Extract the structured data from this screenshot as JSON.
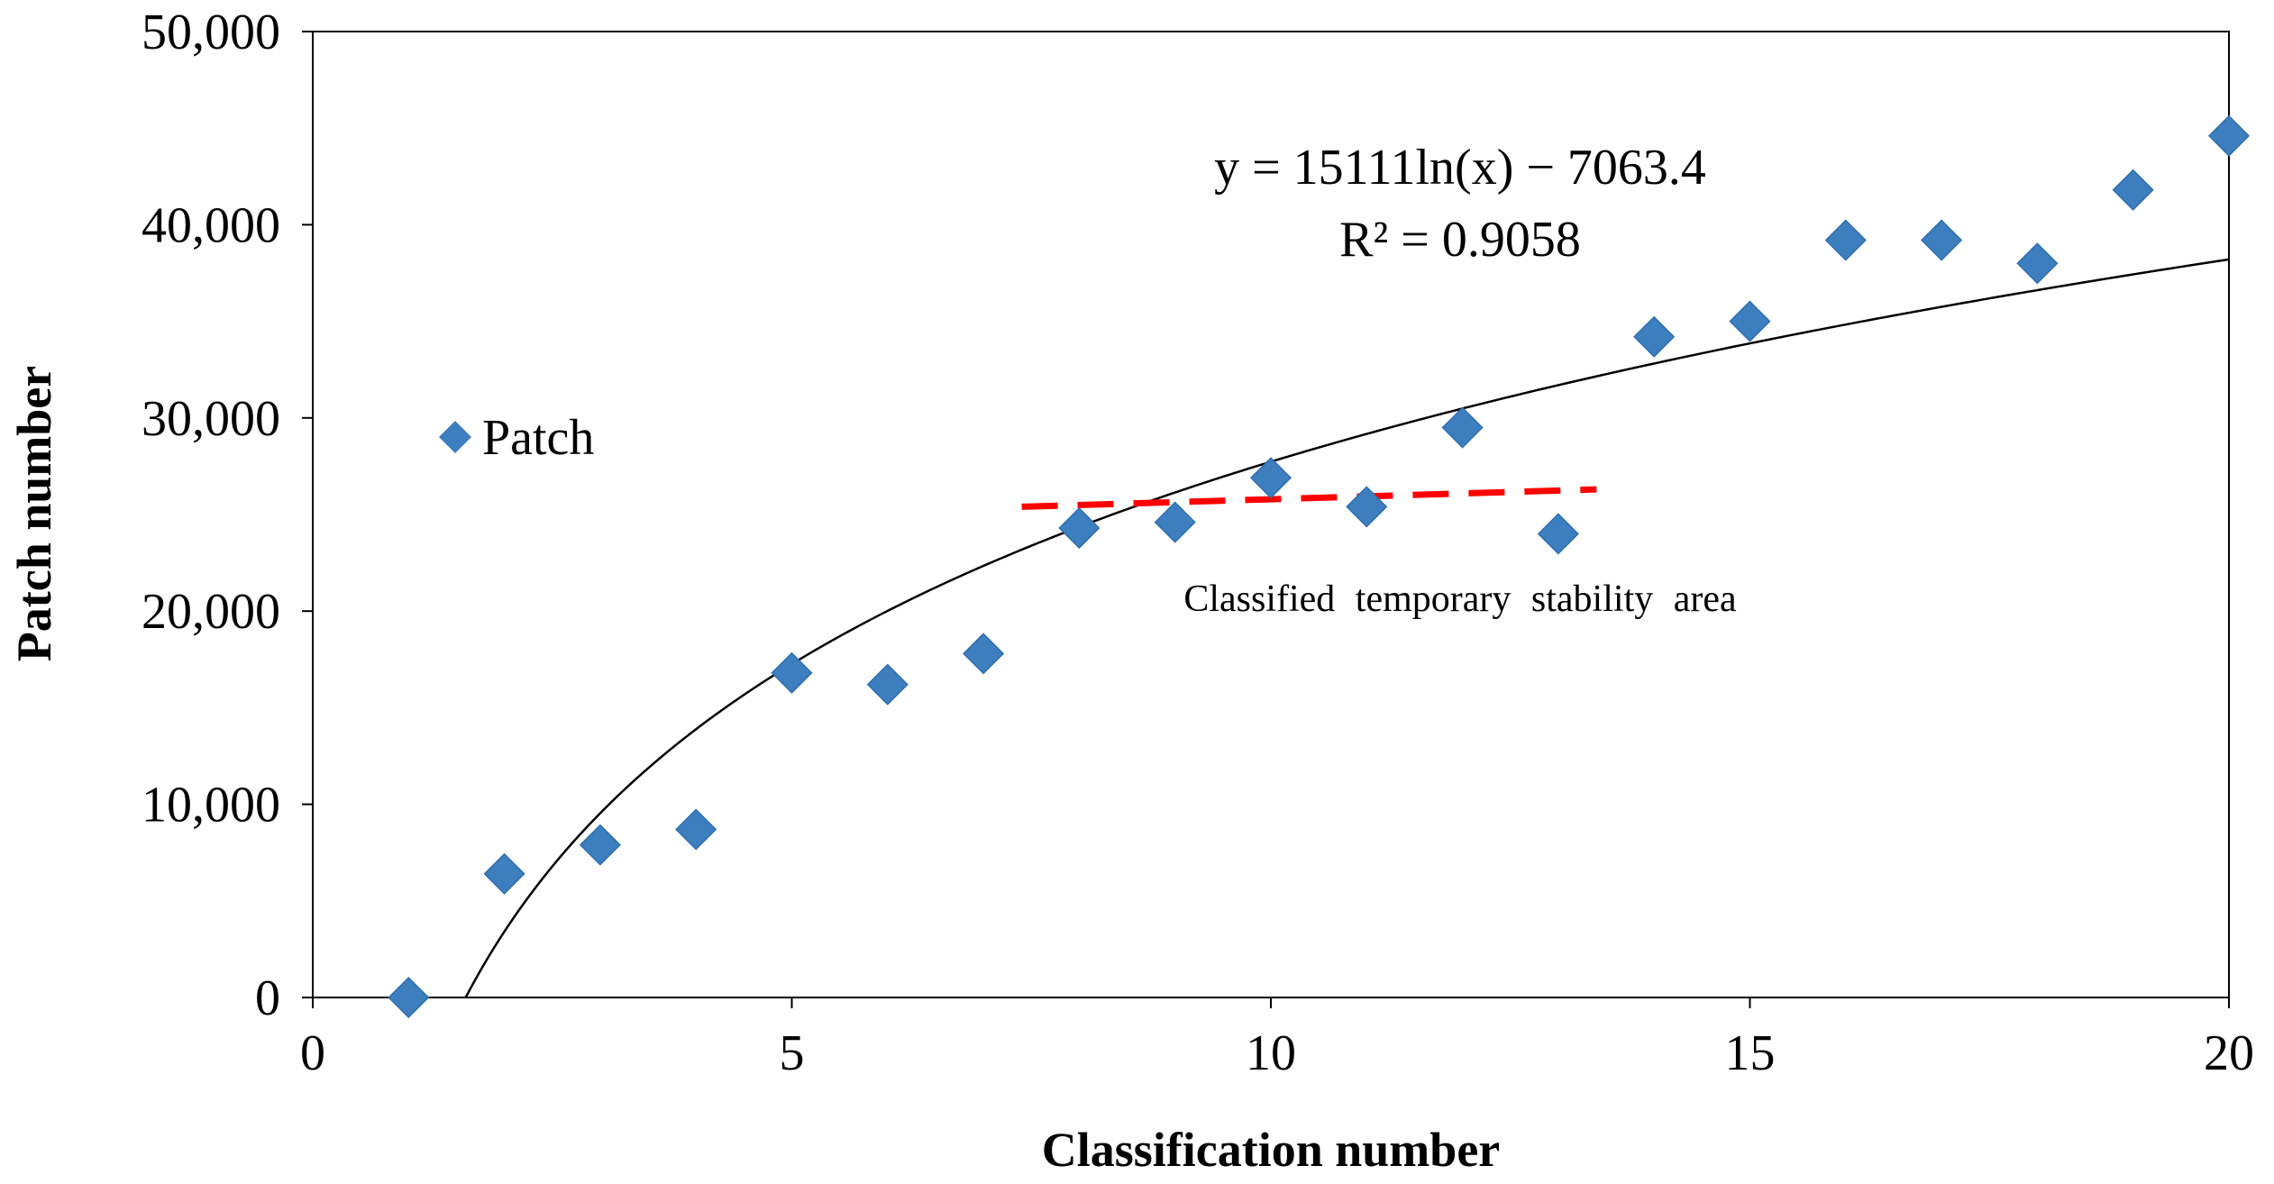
{
  "chart_data": {
    "type": "scatter",
    "title": "",
    "xlabel": "Classification number",
    "ylabel": "Patch number",
    "xlim": [
      0,
      20
    ],
    "ylim": [
      0,
      50000
    ],
    "x_ticks": [
      0,
      5,
      10,
      15,
      20
    ],
    "x_tick_labels": [
      "0",
      "5",
      "10",
      "15",
      "20"
    ],
    "y_ticks": [
      0,
      10000,
      20000,
      30000,
      40000,
      50000
    ],
    "y_tick_labels": [
      "0",
      "10,000",
      "20,000",
      "30,000",
      "40,000",
      "50,000"
    ],
    "grid": false,
    "series": [
      {
        "name": "Patch",
        "marker": "diamond",
        "color": "#3D7EBF",
        "x": [
          1,
          2,
          3,
          4,
          5,
          6,
          7,
          8,
          9,
          10,
          11,
          12,
          13,
          14,
          15,
          16,
          17,
          18,
          19,
          20
        ],
        "y": [
          0,
          6400,
          7900,
          8700,
          16800,
          16200,
          17800,
          24300,
          24600,
          26900,
          25400,
          29500,
          24000,
          34200,
          35000,
          39200,
          39200,
          38000,
          41800,
          44600
        ]
      }
    ],
    "trendline": {
      "type": "logarithmic",
      "a": 15111,
      "b": -7063.4,
      "equation": "y = 15111ln(x) − 7063.4",
      "r_squared": "R² = 0.9058",
      "color": "#000000"
    },
    "stability_line": {
      "label": "Classified  temporary  stability  area",
      "color": "#FF0000",
      "x": [
        7.4,
        13.4
      ],
      "y": [
        25400,
        26300
      ]
    },
    "legend": {
      "position": "left",
      "entries": [
        "Patch"
      ]
    }
  }
}
